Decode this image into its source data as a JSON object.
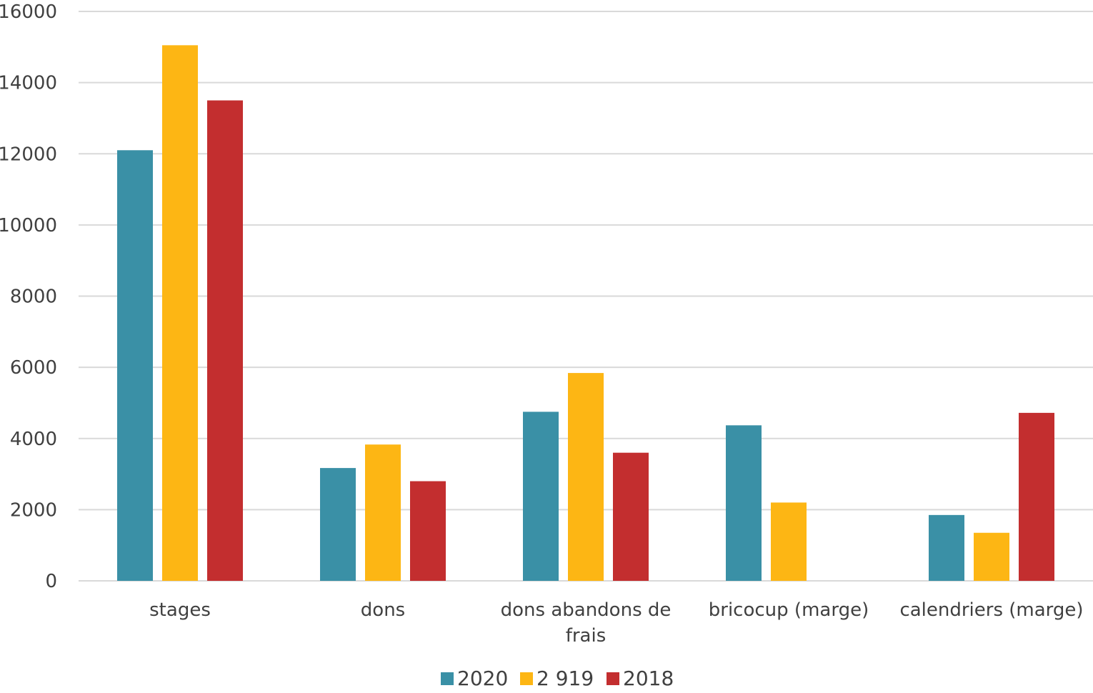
{
  "chart_data": {
    "type": "bar",
    "title": "",
    "xlabel": "",
    "ylabel": "",
    "ylim": [
      0,
      16000
    ],
    "yticks": [
      0,
      2000,
      4000,
      6000,
      8000,
      10000,
      12000,
      14000,
      16000
    ],
    "grid": true,
    "legend_position": "bottom",
    "categories": [
      [
        "stages"
      ],
      [
        "dons"
      ],
      [
        "dons abandons de",
        "frais"
      ],
      [
        "bricocup (marge)"
      ],
      [
        "calendriers (marge)"
      ]
    ],
    "series": [
      {
        "name": "2020",
        "color": "#3A90A6",
        "values": [
          12100,
          3170,
          4750,
          4370,
          1850
        ]
      },
      {
        "name": "2 919",
        "color": "#FDB614",
        "values": [
          15050,
          3830,
          5840,
          2200,
          1350
        ]
      },
      {
        "name": "2018",
        "color": "#C32E2F",
        "values": [
          13500,
          2800,
          3600,
          0,
          4720
        ]
      }
    ],
    "colors": {
      "grid": "#D9D9D9",
      "axis_text": "#404040"
    }
  }
}
